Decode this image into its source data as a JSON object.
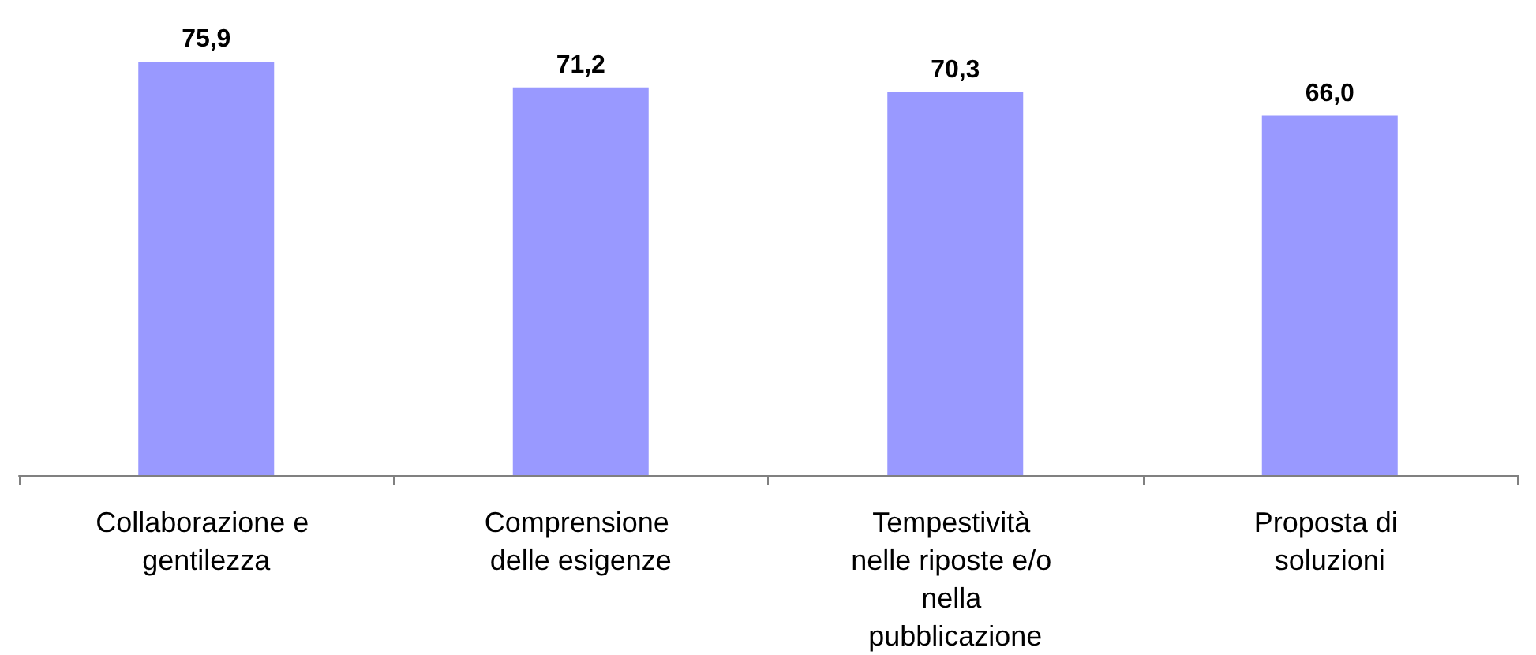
{
  "chart_data": {
    "type": "bar",
    "categories": [
      "Collaborazione e gentilezza",
      "Comprensione delle esigenze",
      "Tempestività nelle riposte e/o nella pubblicazione",
      "Proposta di soluzioni"
    ],
    "values": [
      75.9,
      71.2,
      70.3,
      66.0
    ],
    "value_labels": [
      "75,9",
      "71,2",
      "70,3",
      "66,0"
    ],
    "color": "#9999ff",
    "tick_labels": "x"
  }
}
